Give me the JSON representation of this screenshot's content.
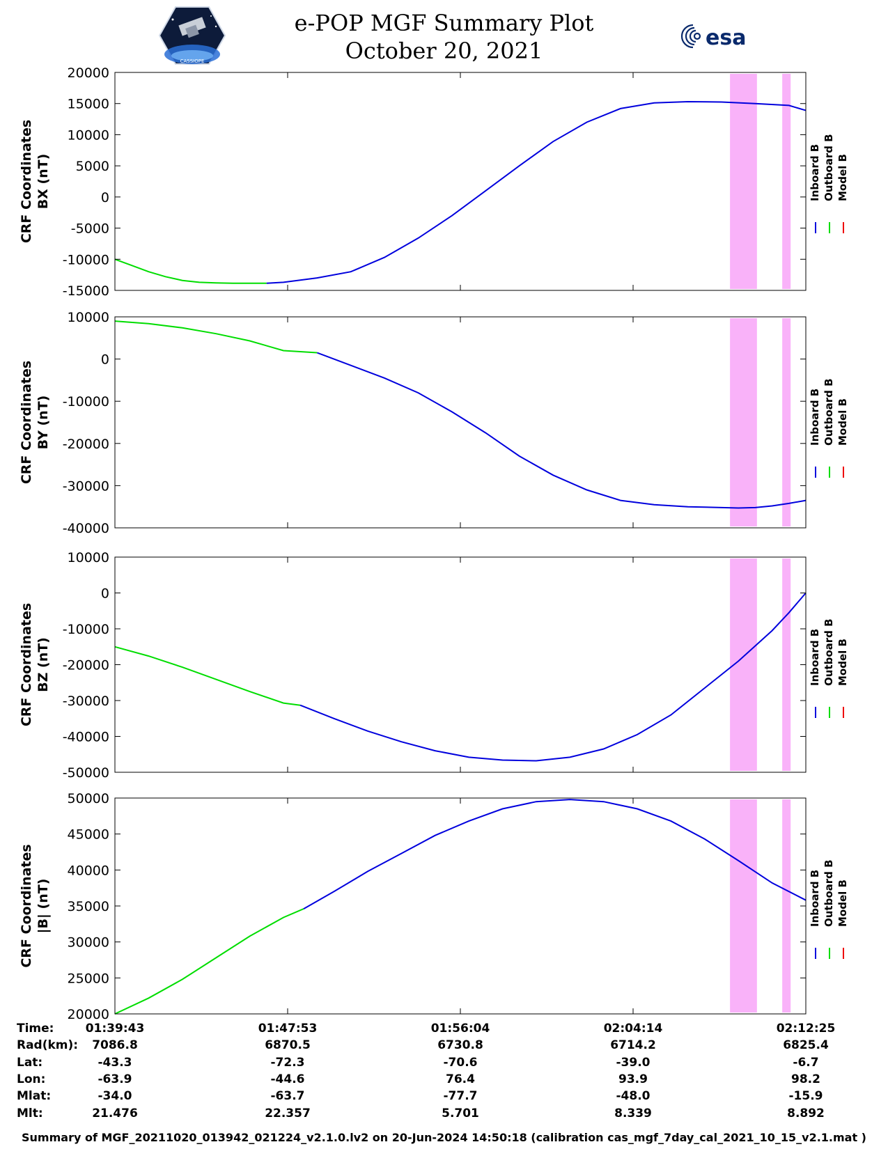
{
  "header": {
    "title_line_1": "e-POP MGF Summary Plot",
    "title_line_2": "October 20, 2021",
    "logo_left_text": "CASSIOPE",
    "logo_right_text": "esa"
  },
  "colors": {
    "inboard": "#0000dd",
    "outboard": "#00dd00",
    "model": "#ee0000",
    "shading": "#f9b2f9"
  },
  "legend": [
    "Inboard B",
    "Outboard B",
    "Model B"
  ],
  "chart_data": [
    {
      "type": "line",
      "ylabel_line1": "CRF Coordinates",
      "ylabel_line2": "BX (nT)",
      "ylim": [
        -15000,
        20000
      ],
      "yticks": [
        20000,
        15000,
        10000,
        5000,
        0,
        -5000,
        -10000,
        -15000
      ],
      "series": [
        {
          "name": "Outboard B",
          "color": "outboard",
          "x": [
            0,
            1,
            2,
            3,
            4,
            5,
            6,
            7,
            8,
            9
          ],
          "y": [
            -10000,
            -11000,
            -12000,
            -12800,
            -13400,
            -13700,
            -13800,
            -13850,
            -13850,
            -13850
          ]
        },
        {
          "name": "Inboard B",
          "color": "inboard",
          "x": [
            9,
            10,
            12,
            14,
            16,
            18,
            20,
            22,
            24,
            26,
            28,
            30,
            32,
            34,
            36,
            38,
            40,
            41
          ],
          "y": [
            -13850,
            -13700,
            -13000,
            -12000,
            -9700,
            -6600,
            -3000,
            1000,
            5000,
            8900,
            12000,
            14200,
            15100,
            15300,
            15250,
            15000,
            14700,
            13900
          ]
        }
      ],
      "shaded_regions": [
        [
          36.5,
          38.1
        ],
        [
          39.6,
          40.1
        ]
      ]
    },
    {
      "type": "line",
      "ylabel_line1": "CRF Coordinates",
      "ylabel_line2": "BY (nT)",
      "ylim": [
        -40000,
        10000
      ],
      "yticks": [
        10000,
        0,
        -10000,
        -20000,
        -30000,
        -40000
      ],
      "series": [
        {
          "name": "Outboard B",
          "color": "outboard",
          "x": [
            0,
            2,
            4,
            6,
            8,
            10,
            12
          ],
          "y": [
            9000,
            8400,
            7400,
            6000,
            4300,
            2000,
            1500
          ]
        },
        {
          "name": "Inboard B",
          "color": "inboard",
          "x": [
            12,
            14,
            16,
            18,
            20,
            22,
            24,
            26,
            28,
            30,
            32,
            34,
            36,
            37,
            38,
            39,
            40,
            41
          ],
          "y": [
            1500,
            -1500,
            -4500,
            -8000,
            -12500,
            -17500,
            -23000,
            -27500,
            -31000,
            -33500,
            -34500,
            -35000,
            -35200,
            -35300,
            -35200,
            -34800,
            -34200,
            -33500
          ]
        }
      ],
      "shaded_regions": [
        [
          36.5,
          38.1
        ],
        [
          39.6,
          40.1
        ]
      ]
    },
    {
      "type": "line",
      "ylabel_line1": "CRF Coordinates",
      "ylabel_line2": "BZ (nT)",
      "ylim": [
        -50000,
        10000
      ],
      "yticks": [
        10000,
        0,
        -10000,
        -20000,
        -30000,
        -40000,
        -50000
      ],
      "series": [
        {
          "name": "Outboard B",
          "color": "outboard",
          "x": [
            0,
            2,
            4,
            6,
            8,
            10,
            11
          ],
          "y": [
            -15000,
            -17600,
            -20700,
            -24100,
            -27500,
            -30700,
            -31300
          ]
        },
        {
          "name": "Inboard B",
          "color": "inboard",
          "x": [
            11,
            13,
            15,
            17,
            19,
            21,
            23,
            25,
            27,
            29,
            31,
            33,
            35,
            37,
            39,
            40,
            41
          ],
          "y": [
            -31300,
            -35000,
            -38500,
            -41500,
            -44000,
            -45800,
            -46600,
            -46800,
            -45800,
            -43500,
            -39500,
            -34000,
            -26500,
            -19000,
            -10500,
            -5500,
            0
          ]
        }
      ],
      "shaded_regions": [
        [
          36.5,
          38.1
        ],
        [
          39.6,
          40.1
        ]
      ]
    },
    {
      "type": "line",
      "ylabel_line1": "CRF Coordinates",
      "ylabel_line2": "|B| (nT)",
      "ylim": [
        20000,
        50000
      ],
      "yticks": [
        50000,
        45000,
        40000,
        35000,
        30000,
        25000,
        20000
      ],
      "series": [
        {
          "name": "Outboard B",
          "color": "outboard",
          "x": [
            0,
            2,
            4,
            6,
            8,
            10,
            11.2
          ],
          "y": [
            20000,
            22200,
            24800,
            27800,
            30800,
            33400,
            34600
          ]
        },
        {
          "name": "Inboard B",
          "color": "inboard",
          "x": [
            11.2,
            13,
            15,
            17,
            19,
            21,
            23,
            25,
            27,
            29,
            31,
            33,
            35,
            37,
            39,
            41
          ],
          "y": [
            34600,
            37000,
            39800,
            42300,
            44800,
            46800,
            48500,
            49500,
            49800,
            49500,
            48500,
            46800,
            44300,
            41300,
            38200,
            35800
          ]
        }
      ],
      "shaded_regions": [
        [
          36.5,
          38.1
        ],
        [
          39.6,
          40.1
        ]
      ]
    }
  ],
  "x_axis": {
    "xlim": [
      0,
      41
    ],
    "tick_positions": [
      0,
      10.25,
      20.5,
      30.75,
      41
    ]
  },
  "info_table": {
    "rows": [
      {
        "label": "Time:",
        "values": [
          "01:39:43",
          "01:47:53",
          "01:56:04",
          "02:04:14",
          "02:12:25"
        ]
      },
      {
        "label": "Rad(km):",
        "values": [
          "7086.8",
          "6870.5",
          "6730.8",
          "6714.2",
          "6825.4"
        ]
      },
      {
        "label": "Lat:",
        "values": [
          "-43.3",
          "-72.3",
          "-70.6",
          "-39.0",
          "-6.7"
        ]
      },
      {
        "label": "Lon:",
        "values": [
          "-63.9",
          "-44.6",
          "76.4",
          "93.9",
          "98.2"
        ]
      },
      {
        "label": "Mlat:",
        "values": [
          "-34.0",
          "-63.7",
          "-77.7",
          "-48.0",
          "-15.9"
        ]
      },
      {
        "label": "Mlt:",
        "values": [
          "21.476",
          "22.357",
          "5.701",
          "8.339",
          "8.892"
        ]
      }
    ]
  },
  "footer": "Summary of MGF_20211020_013942_021224_v2.1.0.lv2 on 20-Jun-2024 14:50:18 (calibration cas_mgf_7day_cal_2021_10_15_v2.1.mat )"
}
